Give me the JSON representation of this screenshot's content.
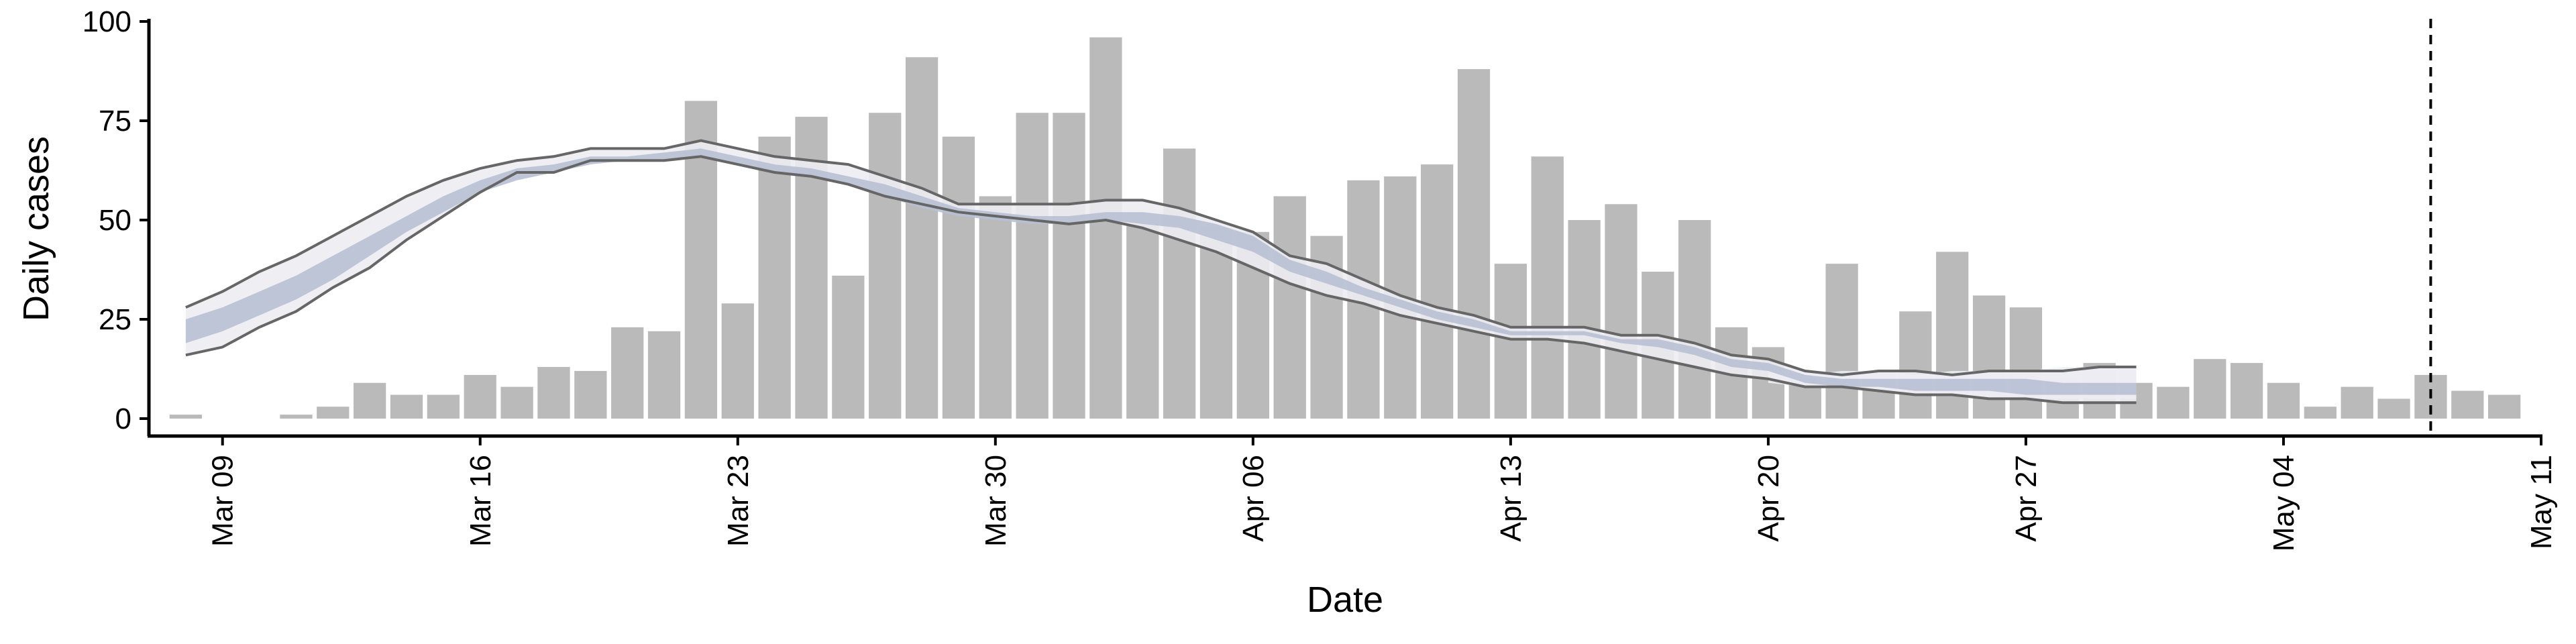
{
  "chart_data": {
    "type": "bar",
    "xlabel": "Date",
    "ylabel": "Daily cases",
    "ylim": [
      0,
      100
    ],
    "xlim": [
      "2020-03-07",
      "2020-05-11"
    ],
    "y_ticks": [
      0,
      25,
      50,
      75,
      100
    ],
    "x_ticks": [
      {
        "date": "2020-03-09",
        "label": "Mar 09"
      },
      {
        "date": "2020-03-16",
        "label": "Mar 16"
      },
      {
        "date": "2020-03-23",
        "label": "Mar 23"
      },
      {
        "date": "2020-03-30",
        "label": "Mar 30"
      },
      {
        "date": "2020-04-06",
        "label": "Apr 06"
      },
      {
        "date": "2020-04-13",
        "label": "Apr 13"
      },
      {
        "date": "2020-04-20",
        "label": "Apr 20"
      },
      {
        "date": "2020-04-27",
        "label": "Apr 27"
      },
      {
        "date": "2020-05-04",
        "label": "May 04"
      },
      {
        "date": "2020-05-11",
        "label": "May 11"
      }
    ],
    "bars": {
      "start_date": "2020-03-08",
      "values": [
        1,
        0,
        0,
        1,
        3,
        9,
        6,
        6,
        11,
        8,
        13,
        12,
        23,
        22,
        80,
        29,
        71,
        76,
        36,
        77,
        91,
        71,
        56,
        77,
        77,
        96,
        49,
        68,
        48,
        47,
        56,
        46,
        60,
        61,
        64,
        88,
        39,
        66,
        50,
        54,
        37,
        50,
        23,
        18,
        10,
        39,
        12,
        27,
        42,
        31,
        28,
        10,
        14,
        9,
        8,
        15,
        14,
        9,
        3,
        8,
        5,
        11,
        7,
        6
      ],
      "color": "#bababa"
    },
    "estimate": {
      "start_date": "2020-03-08",
      "upper": [
        28,
        32,
        37,
        41,
        46,
        51,
        56,
        60,
        63,
        65,
        66,
        68,
        68,
        68,
        70,
        68,
        66,
        65,
        64,
        61,
        58,
        54,
        54,
        54,
        54,
        55,
        55,
        53,
        50,
        47,
        41,
        39,
        35,
        31,
        28,
        26,
        23,
        23,
        23,
        21,
        21,
        19,
        16,
        15,
        12,
        11,
        12,
        12,
        11,
        12,
        12,
        12,
        13,
        13
      ],
      "band_upper": [
        25,
        28,
        32,
        36,
        41,
        46,
        51,
        56,
        60,
        63,
        64,
        66,
        66,
        67,
        68,
        66,
        64,
        63,
        61,
        59,
        56,
        53,
        52,
        51,
        51,
        52,
        52,
        51,
        49,
        46,
        40,
        37,
        33,
        30,
        27,
        25,
        22,
        22,
        22,
        20,
        20,
        18,
        15,
        14,
        11,
        10,
        10,
        10,
        10,
        10,
        10,
        9,
        9,
        9
      ],
      "band_lower": [
        19,
        22,
        26,
        30,
        35,
        41,
        47,
        52,
        57,
        60,
        62,
        64,
        65,
        65,
        66,
        64,
        62,
        61,
        59,
        56,
        53,
        51,
        50,
        49,
        49,
        50,
        49,
        48,
        45,
        42,
        37,
        34,
        31,
        28,
        25,
        23,
        21,
        21,
        21,
        19,
        18,
        16,
        13,
        12,
        9,
        8,
        8,
        7,
        7,
        7,
        6,
        6,
        6,
        6
      ],
      "lower": [
        16,
        18,
        23,
        27,
        33,
        38,
        45,
        51,
        57,
        62,
        62,
        65,
        65,
        65,
        66,
        64,
        62,
        61,
        59,
        56,
        54,
        52,
        51,
        50,
        49,
        50,
        48,
        45,
        42,
        38,
        34,
        31,
        29,
        26,
        24,
        22,
        20,
        20,
        19,
        17,
        15,
        13,
        11,
        10,
        8,
        8,
        7,
        6,
        6,
        5,
        5,
        4,
        4,
        4
      ],
      "outer_fill": "#ececf2",
      "inner_fill": "#b8c0d4",
      "line_color": "#666666"
    },
    "projection": {
      "start_date": "2020-04-20",
      "upper": [
        12,
        11,
        12,
        12,
        11,
        12,
        12,
        12,
        13,
        13,
        13
      ],
      "lower": [
        9,
        8,
        8,
        7,
        6,
        6,
        5,
        5,
        5,
        5,
        5
      ],
      "fill": "#eef0f6"
    },
    "reference_line_date": "2020-05-08",
    "grid": false,
    "legend": "none"
  }
}
